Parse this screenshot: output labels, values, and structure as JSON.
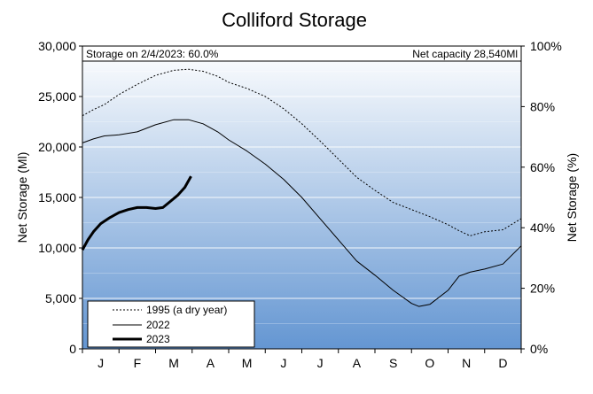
{
  "chart_data": {
    "type": "line",
    "title": "Colliford Storage",
    "note_left": "Storage on 2/4/2023: 60.0%",
    "note_right": "Net capacity 28,540Ml",
    "ylabel_left": "Net Storage (Ml)",
    "ylabel_right": "Net Storage (%)",
    "ylim_left": [
      0,
      30000
    ],
    "ylim_right": [
      0,
      100
    ],
    "yticks_left": [
      "0",
      "5,000",
      "10,000",
      "15,000",
      "20,000",
      "25,000",
      "30,000"
    ],
    "yticks_right": [
      "0%",
      "20%",
      "40%",
      "60%",
      "80%",
      "100%"
    ],
    "months": [
      "J",
      "F",
      "M",
      "A",
      "M",
      "J",
      "J",
      "A",
      "S",
      "O",
      "N",
      "D"
    ],
    "x_unit": "month",
    "xlim": [
      0,
      12
    ],
    "grid": true,
    "legend_position": "bottom-left",
    "series": [
      {
        "name": "1995 (a dry year)",
        "style": "dotted",
        "color": "#000000",
        "x": [
          0,
          0.3,
          0.6,
          1.0,
          1.5,
          2.0,
          2.5,
          2.9,
          3.3,
          3.7,
          4.0,
          4.5,
          5.0,
          5.5,
          6.0,
          6.5,
          7.0,
          7.5,
          8.0,
          8.5,
          9.0,
          9.5,
          10.0,
          10.3,
          10.6,
          11.0,
          11.5,
          12.0
        ],
        "y": [
          23100,
          23700,
          24200,
          25200,
          26200,
          27100,
          27600,
          27700,
          27500,
          27000,
          26400,
          25800,
          25000,
          23800,
          22300,
          20600,
          18800,
          17000,
          15700,
          14500,
          13800,
          13100,
          12300,
          11700,
          11200,
          11600,
          11800,
          12900
        ]
      },
      {
        "name": "2022",
        "style": "solid",
        "color": "#000000",
        "x": [
          0,
          0.3,
          0.6,
          1.0,
          1.5,
          2.0,
          2.5,
          2.9,
          3.3,
          3.7,
          4.0,
          4.5,
          5.0,
          5.5,
          6.0,
          6.5,
          7.0,
          7.5,
          8.0,
          8.5,
          9.0,
          9.2,
          9.5,
          10.0,
          10.3,
          10.6,
          11.0,
          11.5,
          12.0
        ],
        "y": [
          20400,
          20800,
          21100,
          21200,
          21500,
          22200,
          22700,
          22700,
          22300,
          21500,
          20700,
          19600,
          18300,
          16800,
          15000,
          12900,
          10800,
          8700,
          7300,
          5800,
          4500,
          4200,
          4400,
          5800,
          7200,
          7600,
          7900,
          8400,
          10200
        ]
      },
      {
        "name": "2023",
        "style": "solid-thick",
        "color": "#000000",
        "x": [
          0,
          0.15,
          0.3,
          0.5,
          0.75,
          1.0,
          1.25,
          1.5,
          1.75,
          2.0,
          2.2,
          2.4,
          2.6,
          2.8,
          2.97
        ],
        "y": [
          9800,
          10800,
          11600,
          12400,
          13000,
          13500,
          13800,
          14000,
          14000,
          13900,
          14000,
          14600,
          15200,
          16000,
          17100
        ]
      }
    ]
  },
  "colors": {
    "plot_bg_top": "#ffffff",
    "plot_bg_bottom": "#6496d2",
    "grid": "#ffffff",
    "frame": "#000000"
  }
}
